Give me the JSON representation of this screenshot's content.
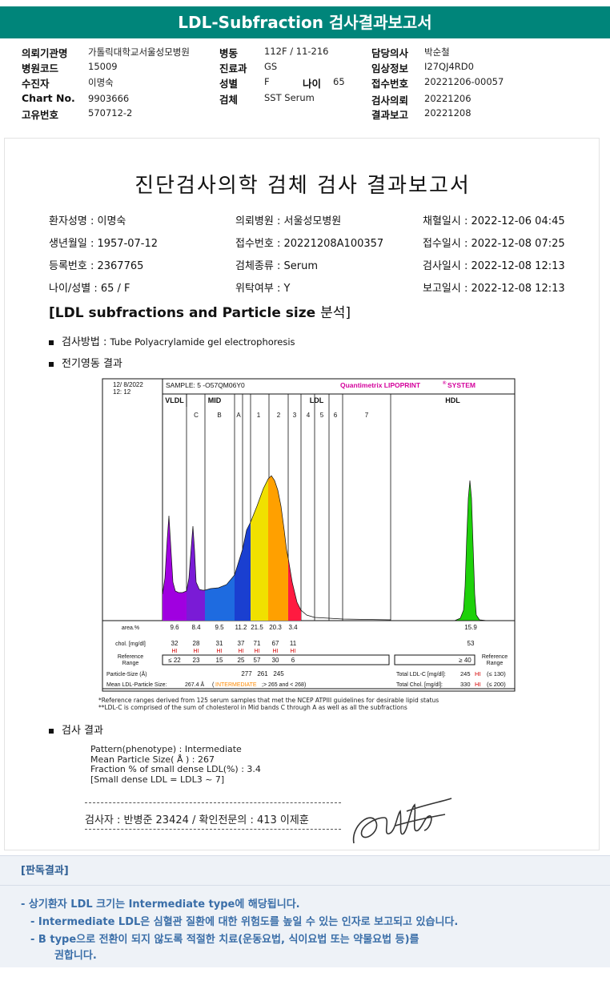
{
  "header": {
    "title": "LDL-Subfraction 검사결과보고서"
  },
  "info": {
    "hospital_label": "의뢰기관명",
    "hospital": "가톨릭대학교서울성모병원",
    "code_label": "병원코드",
    "code": "15009",
    "patient_label": "수진자",
    "patient": "이명숙",
    "chart_label": "Chart No.",
    "chart_no": "9903666",
    "unique_label": "고유번호",
    "unique_no": "570712-2",
    "ward_label": "병동",
    "ward": "112F / 11-216",
    "dept_label": "진료과",
    "dept": "GS",
    "sex_label": "성별",
    "sex": "F",
    "age_label": "나이",
    "age": "65",
    "specimen_label": "검체",
    "specimen": "SST Serum",
    "doctor_label": "담당의사",
    "doctor": "박순철",
    "clinical_label": "임상정보",
    "clinical": "I27QJ4RD0",
    "receipt_label": "접수번호",
    "receipt": "20221206-00057",
    "request_label": "검사의뢰",
    "request": "20221206",
    "result_label": "결과보고",
    "result": "20221208"
  },
  "report": {
    "title": "진단검사의학 검체 검사 결과보고서",
    "fields": {
      "name": "환자성명 : 이명숙",
      "birth": "생년월일 : 1957-07-12",
      "reg": "등록번호 : 2367765",
      "agesex": "나이/성별 : 65 / F",
      "hosp": "의뢰병원 : 서울성모병원",
      "rcpt": "접수번호 : 20221208A100357",
      "spec": "검체종류 : Serum",
      "consign": "위탁여부 : Y",
      "collect": "채혈일시 : 2022-12-06 04:45",
      "rcpt_date": "접수일시 : 2022-12-08 07:25",
      "test_date": "검사일시 : 2022-12-08 12:13",
      "report_date": "보고일시 : 2022-12-08 12:13"
    },
    "section_title_a": "[LDL subfractions and Particle size ",
    "section_title_b": "분석]",
    "method_label": "검사방법 : ",
    "method": "Tube Polyacrylamide gel electrophoresis",
    "electro_label": "전기영동 결과",
    "result_label": "검사 결과",
    "footnote1": "*Reference ranges derived from 125 serum samples that met the NCEP ATPIII guidelines for desirable lipid status",
    "footnote2": "**LDL-C is comprised of the sum of cholesterol in Mid bands C through A as well as all the subfractions",
    "result_lines": [
      "Pattern(phenotype) : Intermediate",
      "Mean Particle Size( Å ) : 267",
      "Fraction % of small dense LDL(%) : 3.4",
      "[Small dense LDL = LDL3 ~ 7]"
    ],
    "signature_line": "검사자 : 반병준  23424  /  확인전문의 : 413  이제훈"
  },
  "chart_data": {
    "type": "area",
    "datetime": "12/ 8/2022\n12: 12",
    "sample": "SAMPLE:   5 -O57QM06Y0",
    "brand": "Quantimetrix LIPOPRINT",
    "brand_sup": "®",
    "brand_suffix": "SYSTEM",
    "regions": [
      "VLDL",
      "MID",
      "LDL",
      "HDL"
    ],
    "bands": [
      "C",
      "B",
      "A",
      "1",
      "2",
      "3",
      "4",
      "5",
      "6",
      "7"
    ],
    "area_label": "area.%",
    "area_values": [
      "9.6",
      "8.4",
      "9.5",
      "11.2",
      "21.5",
      "20.3",
      "3.4",
      "15.9"
    ],
    "chol_label": "chol. [mg/dl]",
    "chol_values": [
      "32",
      "28",
      "31",
      "37",
      "71",
      "67",
      "11",
      "53"
    ],
    "chol_flags": [
      "HI",
      "HI",
      "HI",
      "HI",
      "HI",
      "HI",
      "HI",
      ""
    ],
    "ref_label": "Reference\nRange",
    "ref_values": [
      "≤ 22",
      "23",
      "15",
      "25",
      "57",
      "30",
      "6"
    ],
    "ref_hdl": "≥ 40",
    "ref_label_right": "Reference\nRange",
    "particle_label": "Particle-Size (Å)",
    "particle_values": [
      "277",
      "261",
      "245"
    ],
    "mean_label": "Mean LDL-Particle Size:",
    "mean_value": "267.4 Å",
    "mean_pattern": "INTERMEDIATE",
    "mean_suffix": ";> 265 and < 268)",
    "total_ldl_label": "Total LDL-C [mg/dl]:",
    "total_ldl": "245",
    "total_ldl_flag": "HI",
    "total_ldl_ref": "(≤ 130)",
    "total_chol_label": "Total Chol. [mg/dl]:",
    "total_chol": "330",
    "total_chol_flag": "HI",
    "total_chol_ref": "(≤ 200)",
    "colors": {
      "VLDL": "#a000e0",
      "MID_C": "#7a1bd6",
      "MID_B": "#1e6be0",
      "MID_A": "#1a3fd0",
      "LDL1": "#f0e000",
      "LDL2": "#ffa000",
      "LDL3": "#ff1a40",
      "HDL": "#1ed10a",
      "brand": "#d4009c",
      "hi": "#d40000",
      "intermediate": "#ff8a00"
    }
  },
  "judgement": {
    "title": "[판독결과]",
    "line1": "-  상기환자 LDL 크기는 Intermediate type에 해당됩니다.",
    "line2": "-  Intermediate LDL은 심혈관 질환에 대한 위험도를 높일 수 있는 인자로 보고되고 있습니다.",
    "line3": "-  B type으로 전환이 되지 않도록 적절한 치료(운동요법, 식이요법 또는 약물요법 등)를",
    "line4": "권합니다."
  }
}
